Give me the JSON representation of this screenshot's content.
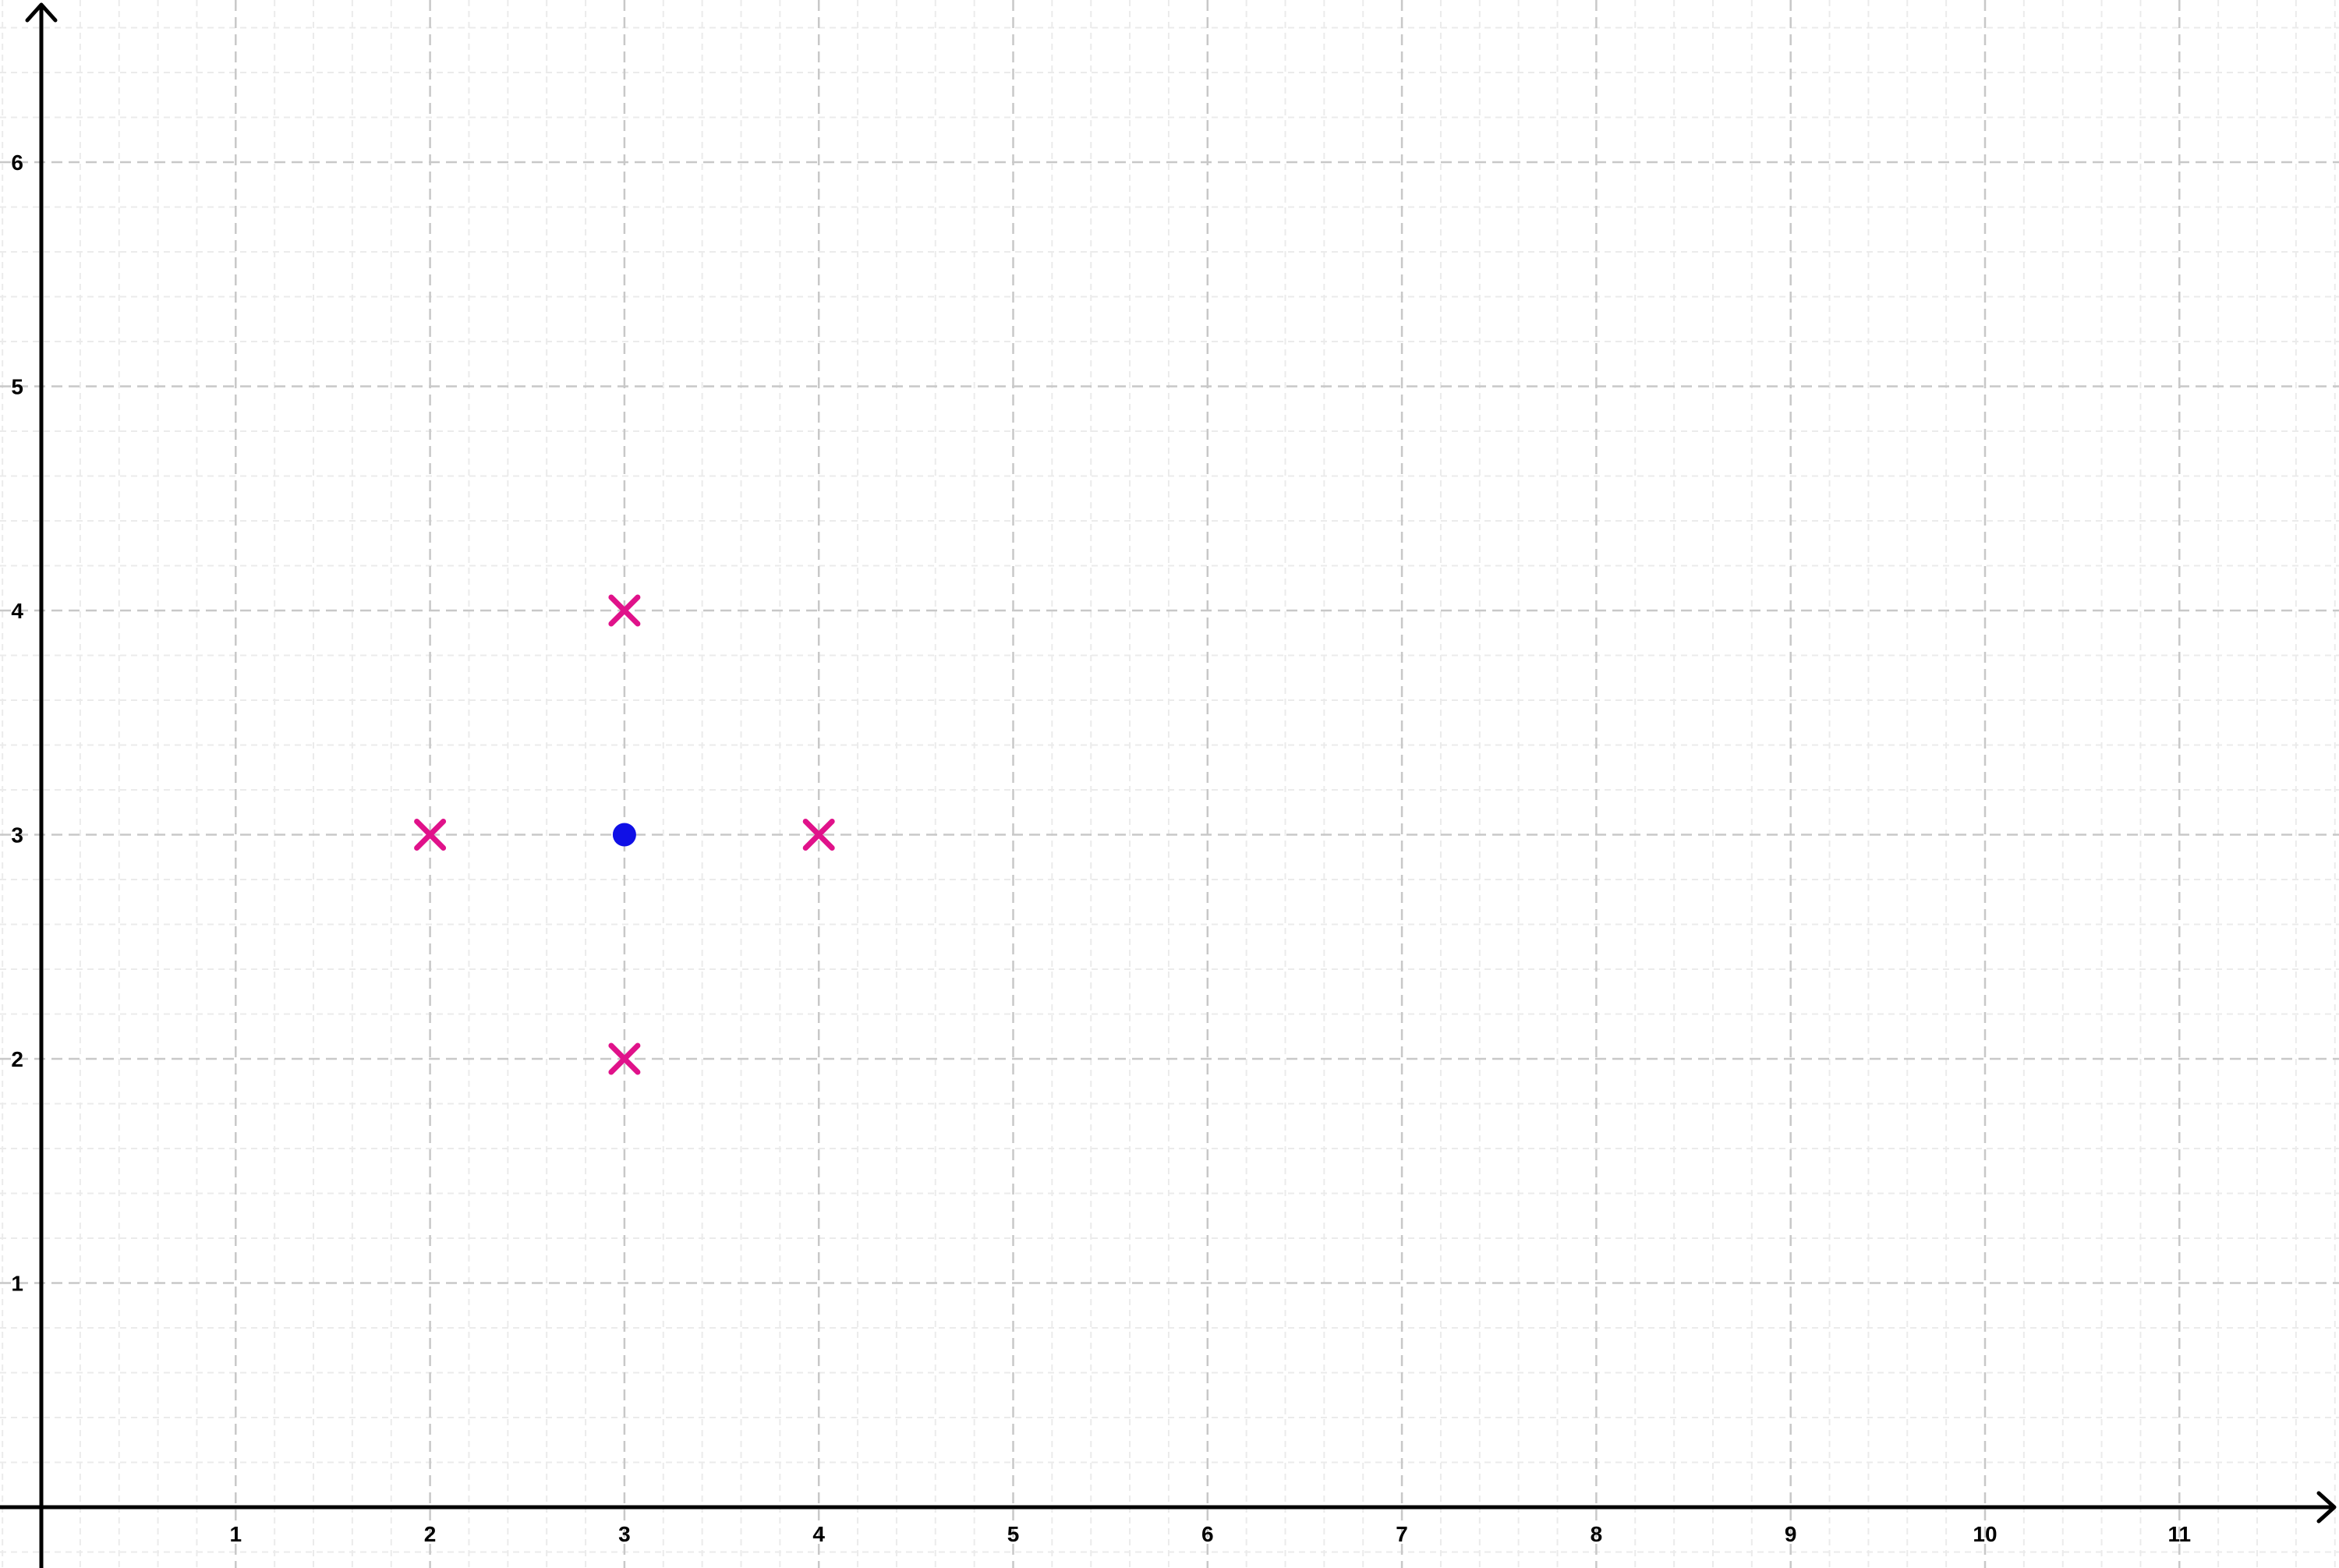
{
  "chart_data": {
    "type": "scatter",
    "title": "",
    "xlabel": "",
    "ylabel": "",
    "xlim": [
      -0.2,
      11.8
    ],
    "ylim": [
      -0.27,
      6.73
    ],
    "x_ticks": [
      1,
      2,
      3,
      4,
      5,
      6,
      7,
      8,
      9,
      10,
      11
    ],
    "y_ticks": [
      1,
      2,
      3,
      4,
      5,
      6
    ],
    "x_tick_labels": [
      "1",
      "2",
      "3",
      "4",
      "5",
      "6",
      "7",
      "8",
      "9",
      "10",
      "11"
    ],
    "y_tick_labels": [
      "1",
      "2",
      "3",
      "4",
      "5",
      "6"
    ],
    "grid": true,
    "minor_grid_per_unit": 5,
    "series": [
      {
        "marker": "cross",
        "color": "#e0128a",
        "points": [
          {
            "x": 3,
            "y": 4
          },
          {
            "x": 2,
            "y": 3
          },
          {
            "x": 4,
            "y": 3
          },
          {
            "x": 3,
            "y": 2
          }
        ]
      },
      {
        "marker": "dot",
        "color": "#1010e6",
        "points": [
          {
            "x": 3,
            "y": 3
          }
        ]
      }
    ],
    "colors": {
      "axis": "#000000",
      "major_grid": "#c8c8c8",
      "minor_grid": "#ebebeb"
    }
  }
}
